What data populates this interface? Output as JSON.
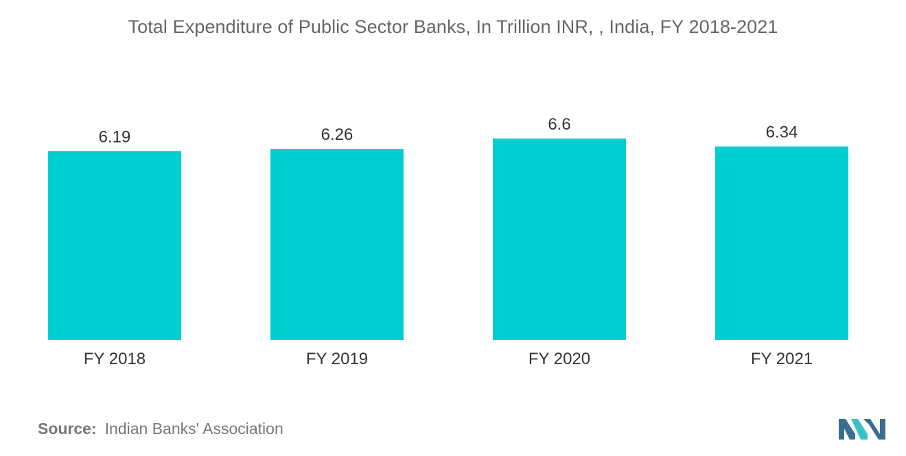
{
  "title": "Total Expenditure of Public Sector Banks, In Trillion INR, , India, FY 2018-2021",
  "source": {
    "label": "Source:",
    "text": "Indian Banks' Association"
  },
  "colors": {
    "bar": "#00CED1",
    "title": "#666666",
    "label": "#333333",
    "logo_dark": "#3A6E8F",
    "logo_light": "#3BC0C8"
  },
  "logo": {
    "icon": "mordor-intelligence-logo-icon"
  },
  "chart_data": {
    "type": "bar",
    "categories": [
      "FY 2018",
      "FY 2019",
      "FY 2020",
      "FY 2021"
    ],
    "values": [
      6.19,
      6.26,
      6.6,
      6.34
    ],
    "value_labels": [
      "6.19",
      "6.26",
      "6.6",
      "6.34"
    ],
    "title": "Total Expenditure of Public Sector Banks, In Trillion INR, , India, FY 2018-2021",
    "xlabel": "",
    "ylabel": "",
    "ylim": [
      0,
      6.6
    ],
    "grid": false,
    "legend": "none"
  }
}
